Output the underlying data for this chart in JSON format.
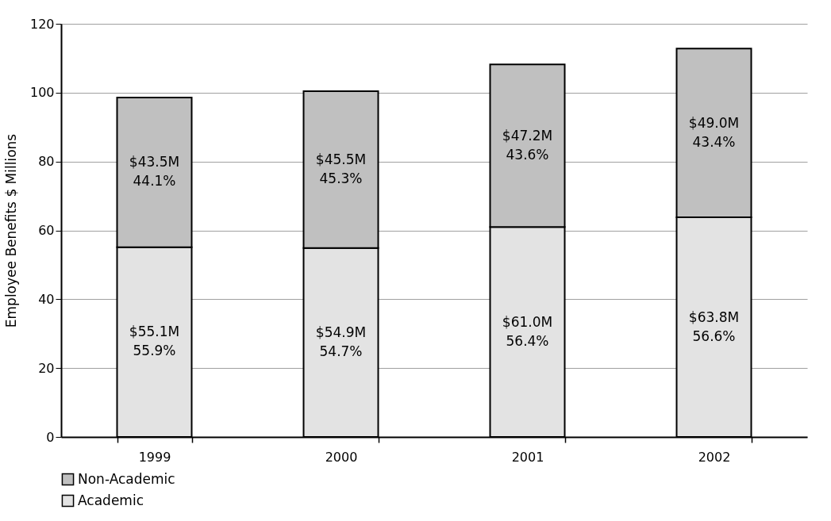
{
  "chart_data": {
    "type": "bar",
    "stacked": true,
    "ylabel": "Employee Benefits $ Millions",
    "categories": [
      "1999",
      "2000",
      "2001",
      "2002"
    ],
    "series": [
      {
        "name": "Academic",
        "color": "#e3e3e3",
        "values": [
          55.1,
          54.9,
          61.0,
          63.8
        ],
        "value_labels": [
          "$55.1M",
          "$54.9M",
          "$61.0M",
          "$63.8M"
        ]
      },
      {
        "name": "Non-Academic",
        "color": "#c0c0c0",
        "values": [
          43.5,
          45.5,
          47.2,
          49.0
        ],
        "value_labels": [
          "$43.5M",
          "$45.5M",
          "$47.2M",
          "$49.0M"
        ]
      }
    ],
    "annotations": [
      "55.9%",
      "54.7%",
      "56.4%",
      "56.6%",
      "44.1%",
      "45.3%",
      "43.6%",
      "43.4%"
    ],
    "ylim": [
      0,
      120
    ],
    "yticks": [
      0,
      20,
      40,
      60,
      80,
      100,
      120
    ],
    "grid": "y",
    "legend": "bottom"
  }
}
